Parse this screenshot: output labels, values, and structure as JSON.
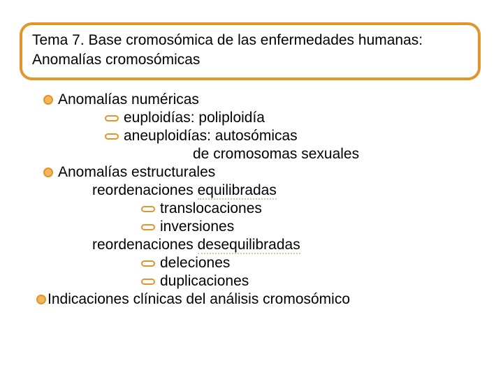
{
  "colors": {
    "accent": "#e3942a",
    "bullet_fill": "#f2b65e",
    "text": "#000000",
    "underline": "#b8d6a8",
    "background": "#ffffff"
  },
  "typography": {
    "font_family": "Arial",
    "title_fontsize": 21,
    "body_fontsize": 21
  },
  "title": "Tema 7. Base cromosómica de las enfermedades humanas: Anomalías cromosómicas",
  "outline": {
    "item1": {
      "label": "Anomalías numéricas",
      "sub1": "euploidías: poliploidía",
      "sub2": "aneuploidías: autosómicas",
      "sub2b": "de cromosomas sexuales"
    },
    "item2": {
      "label": "Anomalías estructurales",
      "group1": {
        "prefix": "reordenaciones ",
        "underlined": "equilibradas",
        "sub1": "translocaciones",
        "sub2": "inversiones"
      },
      "group2": {
        "prefix": "reordenaciones ",
        "underlined": "desequilibradas",
        "sub1": "deleciones",
        "sub2": "duplicaciones"
      }
    },
    "item3": {
      "label": "Indicaciones clínicas del análisis cromosómico"
    }
  }
}
